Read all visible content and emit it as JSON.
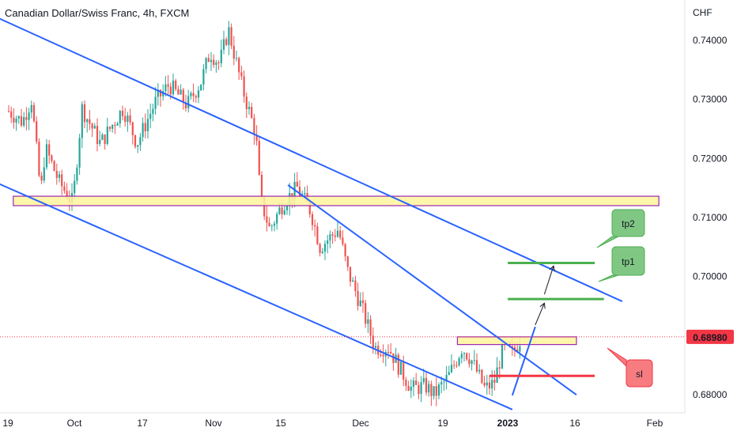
{
  "header": {
    "title": "Canadian Dollar/Swiss Franc, 4h, FXCM"
  },
  "chart_data": {
    "type": "candlestick",
    "title": "Canadian Dollar/Swiss Franc, 4h, FXCM",
    "currency": "CHF",
    "y_ticks": [
      "0.74000",
      "0.73000",
      "0.72000",
      "0.71000",
      "0.70000",
      "0.68000"
    ],
    "ylim": [
      0.6748,
      0.7468
    ],
    "x_ticks": [
      "19",
      "Oct",
      "17",
      "Nov",
      "15",
      "Dec",
      "19",
      "2023",
      "16",
      "Feb"
    ],
    "last_price": "0.68980",
    "last_price_value": 0.6898,
    "price_path": [
      {
        "x": "Sep 19",
        "y": 0.728
      },
      {
        "x": "Sep 22",
        "y": 0.7262
      },
      {
        "x": "Sep 24",
        "y": 0.73
      },
      {
        "x": "Sep 26",
        "y": 0.714
      },
      {
        "x": "Sep 27",
        "y": 0.7218
      },
      {
        "x": "Sep 30",
        "y": 0.716
      },
      {
        "x": "Oct 3",
        "y": 0.7125
      },
      {
        "x": "Oct 5",
        "y": 0.7285
      },
      {
        "x": "Oct 9",
        "y": 0.7225
      },
      {
        "x": "Oct 14",
        "y": 0.7285
      },
      {
        "x": "Oct 17",
        "y": 0.7225
      },
      {
        "x": "Oct 21",
        "y": 0.7295
      },
      {
        "x": "Oct 24",
        "y": 0.7325
      },
      {
        "x": "Oct 28",
        "y": 0.729
      },
      {
        "x": "Oct 31",
        "y": 0.733
      },
      {
        "x": "Nov 2",
        "y": 0.738
      },
      {
        "x": "Nov 4",
        "y": 0.736
      },
      {
        "x": "Nov 6",
        "y": 0.7418
      },
      {
        "x": "Nov 9",
        "y": 0.732
      },
      {
        "x": "Nov 12",
        "y": 0.724
      },
      {
        "x": "Nov 13",
        "y": 0.713
      },
      {
        "x": "Nov 15",
        "y": 0.708
      },
      {
        "x": "Nov 18",
        "y": 0.7125
      },
      {
        "x": "Nov 21",
        "y": 0.715
      },
      {
        "x": "Nov 24",
        "y": 0.711
      },
      {
        "x": "Nov 26",
        "y": 0.705
      },
      {
        "x": "Nov 30",
        "y": 0.708
      },
      {
        "x": "Dec 2",
        "y": 0.701
      },
      {
        "x": "Dec 5",
        "y": 0.695
      },
      {
        "x": "Dec 8",
        "y": 0.688
      },
      {
        "x": "Dec 11",
        "y": 0.688
      },
      {
        "x": "Dec 13",
        "y": 0.685
      },
      {
        "x": "Dec 16",
        "y": 0.681
      },
      {
        "x": "Dec 19",
        "y": 0.6815
      },
      {
        "x": "Dec 21",
        "y": 0.68
      },
      {
        "x": "Dec 24",
        "y": 0.683
      },
      {
        "x": "Dec 27",
        "y": 0.688
      },
      {
        "x": "Dec 29",
        "y": 0.686
      },
      {
        "x": "Jan 1",
        "y": 0.681
      },
      {
        "x": "Jan 3",
        "y": 0.682
      },
      {
        "x": "Jan 5",
        "y": 0.688
      },
      {
        "x": "Jan 7",
        "y": 0.687
      },
      {
        "x": "Jan 9",
        "y": 0.6898
      }
    ],
    "zones": [
      {
        "y_low": 0.712,
        "y_high": 0.7136,
        "x_from": "Sep 20",
        "x_to": "Feb 8"
      },
      {
        "y_low": 0.6885,
        "y_high": 0.6898,
        "x_from": "Dec 26",
        "x_to": "Jan 21"
      }
    ],
    "trendlines": [
      {
        "x1": "Sep 16",
        "y1": 0.744,
        "x2": "Jan 31",
        "y2": 0.6958
      },
      {
        "x1": "Sep 16",
        "y1": 0.716,
        "x2": "Jan 7",
        "y2": 0.6775
      },
      {
        "x1": "Nov 19",
        "y1": 0.7155,
        "x2": "Jan 21",
        "y2": 0.68
      },
      {
        "x1": "Jan 7",
        "y1": 0.6799,
        "x2": "Jan 12",
        "y2": 0.6915
      }
    ],
    "levels": [
      {
        "label": "tp2",
        "y": 0.7023,
        "x_from": "Jan 6",
        "x_to": "Jan 25",
        "color": "#4caf50"
      },
      {
        "label": "tp1",
        "y": 0.6962,
        "x_from": "Jan 6",
        "x_to": "Jan 27",
        "color": "#4caf50"
      },
      {
        "label": "sl",
        "y": 0.6832,
        "x_from": "Jan 2",
        "x_to": "Jan 25",
        "color": "#f23645"
      }
    ],
    "arrows": [
      {
        "x1": "Jan 12",
        "y1": 0.6918,
        "x2": "Jan 14",
        "y2": 0.6955
      },
      {
        "x1": "Jan 14",
        "y1": 0.697,
        "x2": "Jan 16",
        "y2": 0.7018
      }
    ],
    "colors": {
      "up": "#26a69a",
      "down": "#ef5350",
      "trendline": "#2962ff",
      "tp": "#4caf50",
      "sl": "#f23645",
      "zone_fill": "#fff59d",
      "zone_border": "#9c27b0",
      "price_label": "#f23645"
    }
  }
}
